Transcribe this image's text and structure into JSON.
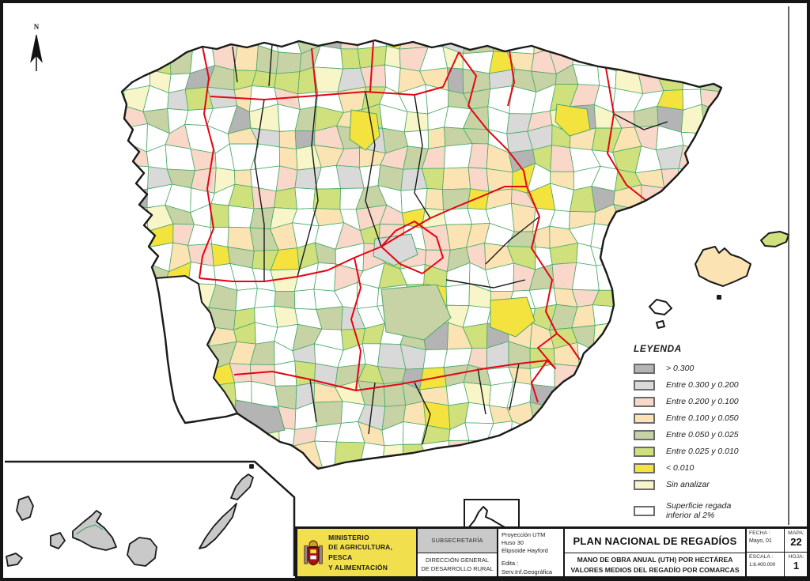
{
  "north_arrow": {
    "label": "N"
  },
  "legend": {
    "title": "LEYENDA",
    "items": [
      {
        "label": "> 0.300",
        "color": "#b4b4b4"
      },
      {
        "label": "Entre 0.300 y 0.200",
        "color": "#d9d9d9"
      },
      {
        "label": "Entre 0.200 y 0.100",
        "color": "#f9d7c9"
      },
      {
        "label": "Entre 0.100 y 0.050",
        "color": "#fbe3b4"
      },
      {
        "label": "Entre 0.050 y 0.025",
        "color": "#c7d2a5"
      },
      {
        "label": "Entre 0.025 y 0.010",
        "color": "#cfe07c"
      },
      {
        "label": "< 0.010",
        "color": "#f4e33e"
      },
      {
        "label": "Sin analizar",
        "color": "#f8f5c8"
      }
    ],
    "special_item": {
      "label": "Superficie regada\ninferior al 2%",
      "color": "#ffffff"
    }
  },
  "map": {
    "border_colors": {
      "comarca": "#4aa968",
      "province": "#1a1a1a",
      "community": "#e30613"
    },
    "mosaic_palette": [
      {
        "color": "#ffffff",
        "weight": 36
      },
      {
        "color": "#f8f5c8",
        "weight": 7
      },
      {
        "color": "#c7d2a5",
        "weight": 12
      },
      {
        "color": "#cfe07c",
        "weight": 10
      },
      {
        "color": "#fbe3b4",
        "weight": 13
      },
      {
        "color": "#f9d7c9",
        "weight": 11
      },
      {
        "color": "#d9d9d9",
        "weight": 5
      },
      {
        "color": "#b4b4b4",
        "weight": 4
      },
      {
        "color": "#f4e33e",
        "weight": 2
      }
    ]
  },
  "title_block": {
    "ministry": {
      "bg": "#f2df4e",
      "lines": [
        "MINISTERIO",
        "DE AGRICULTURA, PESCA",
        "Y ALIMENTACIÓN"
      ]
    },
    "subsecretaria": "SUBSECRETARÍA",
    "direccion_lines": [
      "DIRECCIÓN GENERAL",
      "DE DESARROLLO RURAL"
    ],
    "projection_lines": [
      "Proyección UTM",
      "Huso 30",
      "Elipsoide Hayford"
    ],
    "edita_lines": [
      "Edita :",
      "Serv.Inf.Geográfica"
    ],
    "main_title": "PLAN NACIONAL DE REGADÍOS",
    "subtitle_lines": [
      "MANO DE OBRA ANUAL (UTH) POR HECTÁREA",
      "VALORES MEDIOS DEL REGADÍO POR COMARCAS"
    ],
    "fecha_label": "FECHA :",
    "fecha_value": "Mayo, 01",
    "mapa_label": "MAPA:",
    "mapa_value": "22",
    "escala_label": "ESCALA :",
    "escala_value": "1:8.400.000",
    "hoja_label": "HOJA:",
    "hoja_value": "1"
  }
}
